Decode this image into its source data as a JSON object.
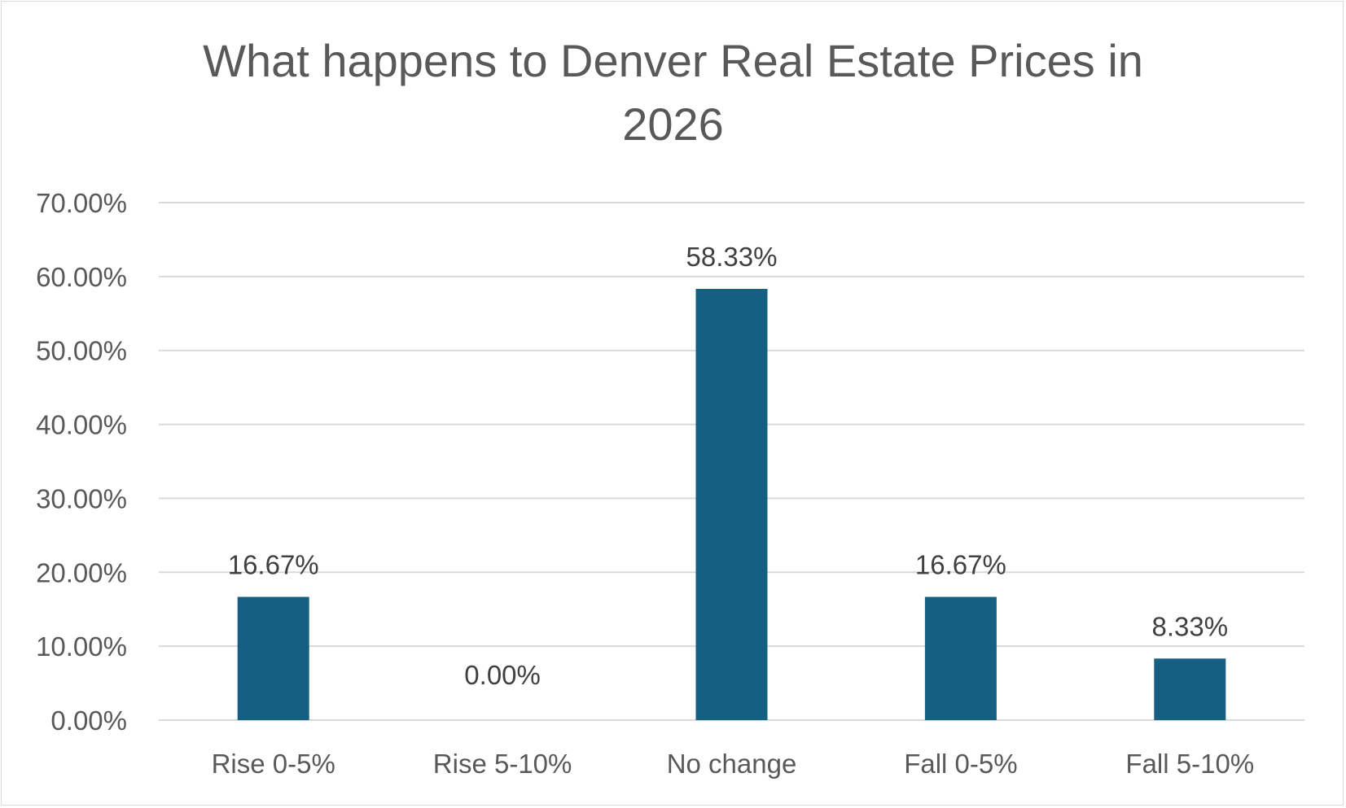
{
  "chart_data": {
    "type": "bar",
    "title": "What happens to Denver Real Estate Prices in 2026",
    "xlabel": "",
    "ylabel": "",
    "categories": [
      "Rise 0-5%",
      "Rise 5-10%",
      "No change",
      "Fall 0-5%",
      "Fall 5-10%"
    ],
    "values": [
      16.67,
      0.0,
      58.33,
      16.67,
      8.33
    ],
    "data_labels": [
      "16.67%",
      "0.00%",
      "58.33%",
      "16.67%",
      "8.33%"
    ],
    "ylim": [
      0,
      70
    ],
    "yticks": [
      0,
      10,
      20,
      30,
      40,
      50,
      60,
      70
    ],
    "ytick_labels": [
      "0.00%",
      "10.00%",
      "20.00%",
      "30.00%",
      "40.00%",
      "50.00%",
      "60.00%",
      "70.00%"
    ],
    "grid": true,
    "legend": "none",
    "colors": {
      "bar": "#156082",
      "grid": "#d9d9d9",
      "axis_text": "#595959",
      "label_text": "#404040"
    }
  }
}
